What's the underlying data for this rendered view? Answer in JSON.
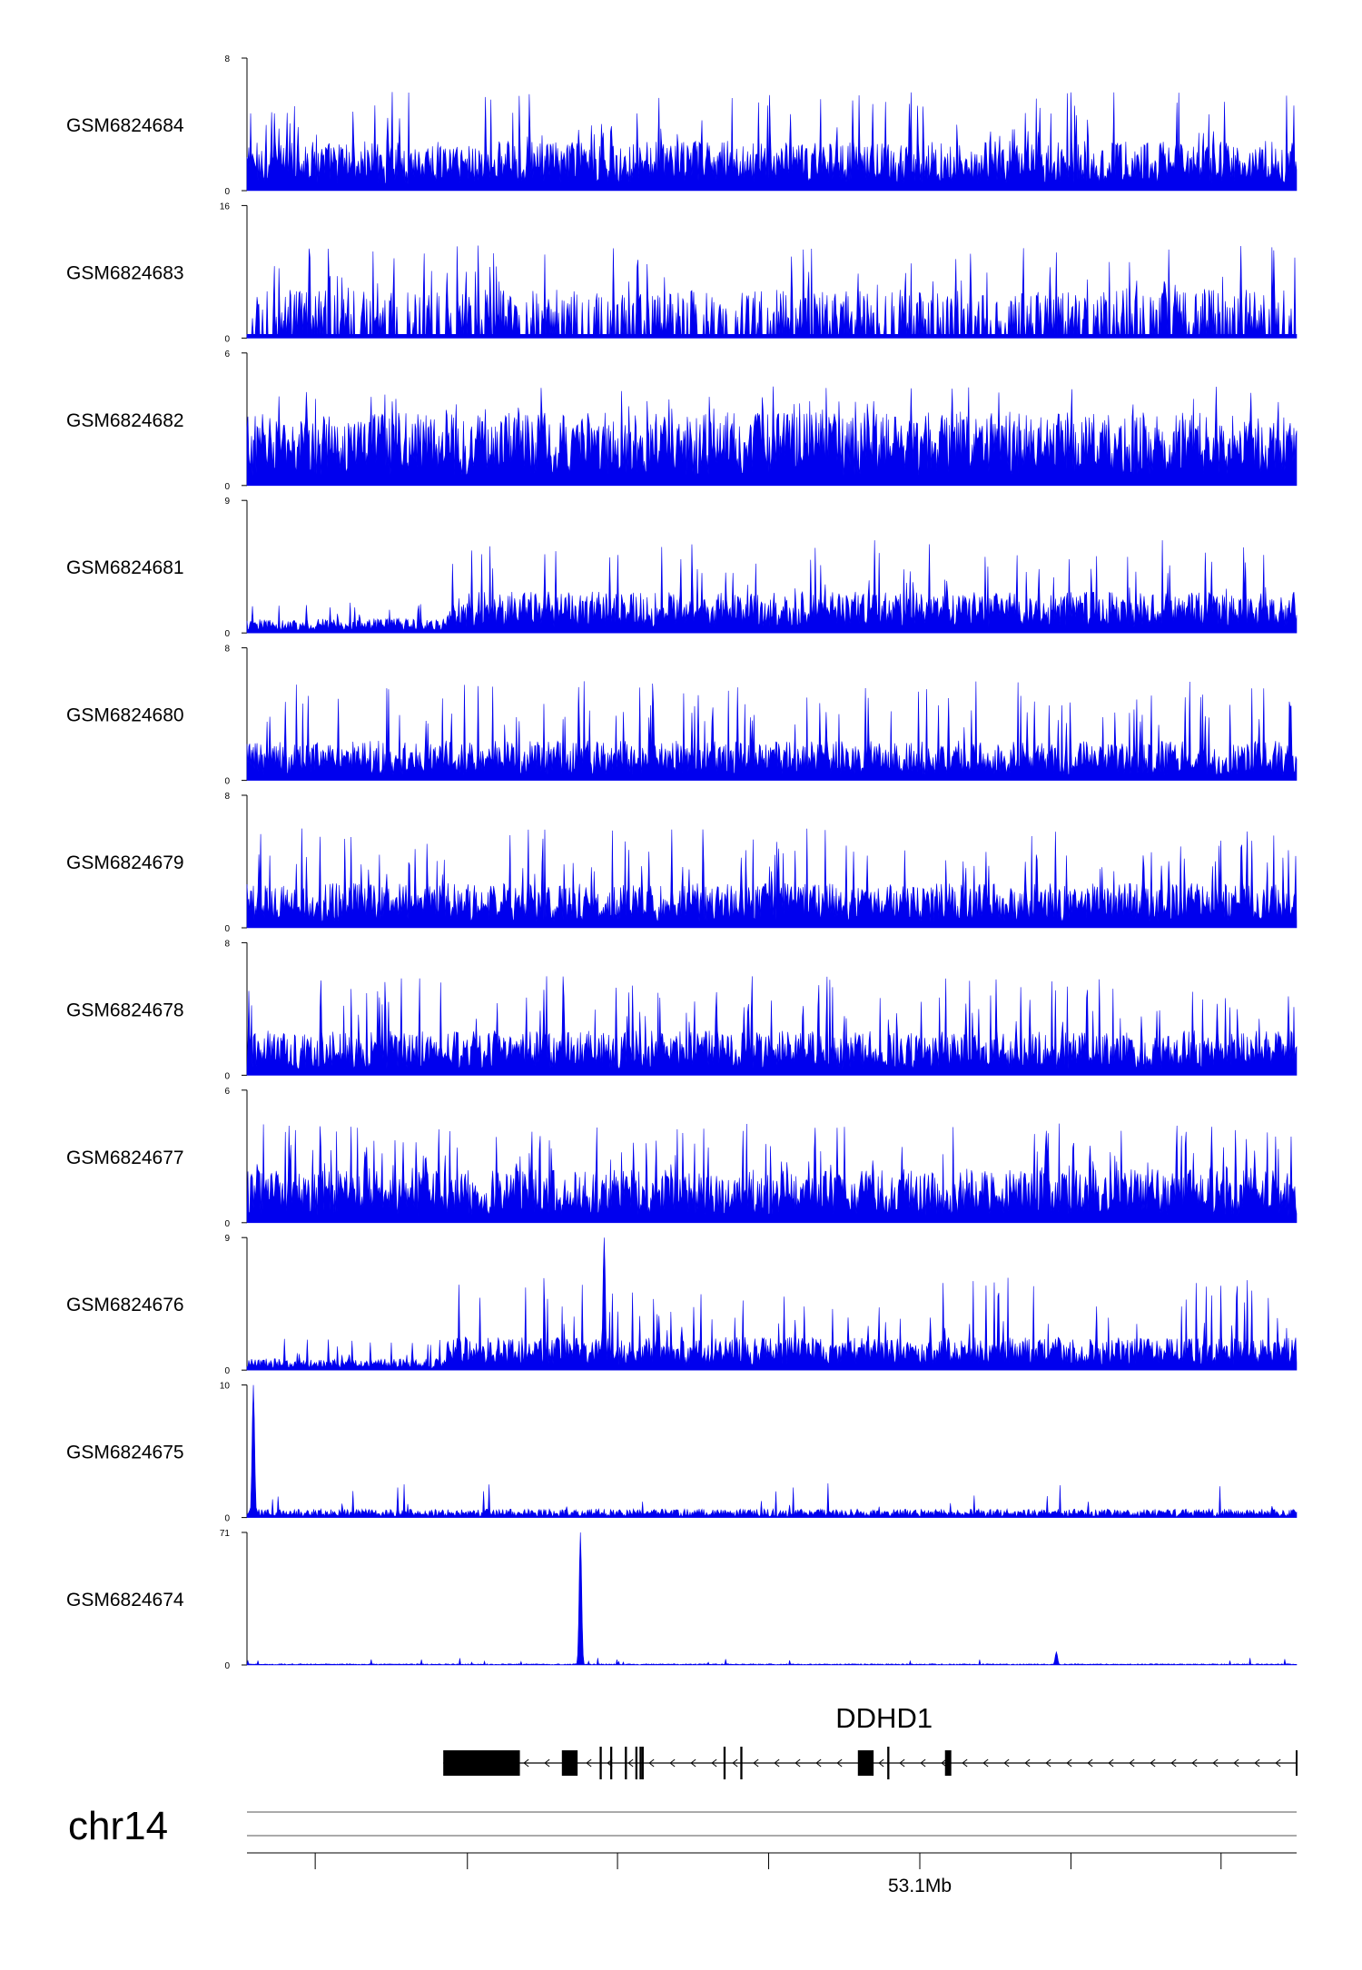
{
  "chart_data": {
    "type": "area",
    "title": "",
    "chromosome": "chr14",
    "series_color": "#0000ee",
    "tracks": [
      {
        "name": "GSM6824684",
        "ymin": 0,
        "ymax": 8,
        "ymin_label": "0",
        "ymax_label": "8",
        "profile": "noisy",
        "base": 2.0
      },
      {
        "name": "GSM6824683",
        "ymin": 0,
        "ymax": 16,
        "ymin_label": "0",
        "ymax_label": "16",
        "profile": "sparse",
        "base": 4.5
      },
      {
        "name": "GSM6824682",
        "ymin": 0,
        "ymax": 6,
        "ymin_label": "0",
        "ymax_label": "6",
        "profile": "noisy",
        "base": 2.2
      },
      {
        "name": "GSM6824681",
        "ymin": 0,
        "ymax": 9,
        "ymin_label": "0",
        "ymax_label": "9",
        "profile": "ramp",
        "base": 2.0
      },
      {
        "name": "GSM6824680",
        "ymin": 0,
        "ymax": 8,
        "ymin_label": "0",
        "ymax_label": "8",
        "profile": "noisy",
        "base": 1.6
      },
      {
        "name": "GSM6824679",
        "ymin": 0,
        "ymax": 8,
        "ymin_label": "0",
        "ymax_label": "8",
        "profile": "noisy",
        "base": 1.8
      },
      {
        "name": "GSM6824678",
        "ymin": 0,
        "ymax": 8,
        "ymin_label": "0",
        "ymax_label": "8",
        "profile": "noisy",
        "base": 1.8
      },
      {
        "name": "GSM6824677",
        "ymin": 0,
        "ymax": 6,
        "ymin_label": "0",
        "ymax_label": "6",
        "profile": "noisy",
        "base": 1.6
      },
      {
        "name": "GSM6824676",
        "ymin": 0,
        "ymax": 9,
        "ymin_label": "0",
        "ymax_label": "9",
        "profile": "ramp",
        "base": 1.6,
        "peaks": [
          {
            "pos": 0.34,
            "value": 9
          }
        ]
      },
      {
        "name": "GSM6824675",
        "ymin": 0,
        "ymax": 10,
        "ymin_label": "0",
        "ymax_label": "10",
        "profile": "low",
        "base": 0.5,
        "peaks": [
          {
            "pos": 0.006,
            "value": 10
          }
        ]
      },
      {
        "name": "GSM6824674",
        "ymin": 0,
        "ymax": 71,
        "ymin_label": "0",
        "ymax_label": "71",
        "profile": "flat",
        "base": 0.6,
        "peaks": [
          {
            "pos": 0.318,
            "value": 71
          },
          {
            "pos": 0.771,
            "value": 7
          }
        ]
      }
    ],
    "gene": {
      "name": "DDHD1",
      "strand": "-",
      "span": [
        0.187,
        1.0
      ],
      "exons": [
        {
          "start": 0.187,
          "end": 0.26
        },
        {
          "start": 0.3,
          "end": 0.315
        },
        {
          "start": 0.336,
          "end": 0.338
        },
        {
          "start": 0.346,
          "end": 0.348
        },
        {
          "start": 0.36,
          "end": 0.362
        },
        {
          "start": 0.374,
          "end": 0.376
        },
        {
          "start": 0.376,
          "end": 0.378
        },
        {
          "start": 0.37,
          "end": 0.372
        },
        {
          "start": 0.47,
          "end": 0.472
        },
        {
          "start": 0.454,
          "end": 0.456
        },
        {
          "start": 0.582,
          "end": 0.597
        },
        {
          "start": 0.61,
          "end": 0.612
        },
        {
          "start": 0.665,
          "end": 0.671
        }
      ]
    },
    "xaxis": {
      "tick_positions": [
        0.065,
        0.21,
        0.353,
        0.497,
        0.641,
        0.785,
        0.928
      ],
      "labeled_tick": {
        "pos": 0.641,
        "label": "53.1Mb"
      }
    }
  }
}
